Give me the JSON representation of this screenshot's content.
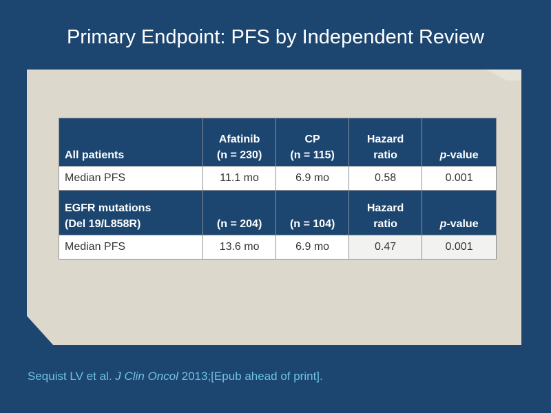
{
  "title": "Primary Endpoint: PFS by Independent Review",
  "table": {
    "section1": {
      "label": "All patients",
      "afatinib": [
        "Afatinib",
        "(n = 230)"
      ],
      "cp": [
        "CP",
        "(n = 115)"
      ],
      "hazard": [
        "Hazard",
        "ratio"
      ],
      "pvalue": {
        "italic": "p",
        "rest": "-value"
      }
    },
    "row1": {
      "label": "Median PFS",
      "afatinib": "11.1 mo",
      "cp": "6.9 mo",
      "hazard": "0.58",
      "pvalue": "0.001"
    },
    "section2": {
      "label": [
        "EGFR mutations",
        "(Del 19/L858R)"
      ],
      "afatinib": "(n = 204)",
      "cp": "(n = 104)",
      "hazard": [
        "Hazard",
        "ratio"
      ],
      "pvalue": {
        "italic": "p",
        "rest": "-value"
      }
    },
    "row2": {
      "label": "Median PFS",
      "afatinib": "13.6 mo",
      "cp": "6.9 mo",
      "hazard": "0.47",
      "pvalue": "0.001"
    }
  },
  "citation": {
    "authors": "Sequist LV et al. ",
    "journal": "J Clin Oncol",
    "rest": " 2013;[Epub ahead of print]."
  },
  "colors": {
    "background": "#1c4670",
    "panel": "#dcd8cc",
    "header_cell": "#1c4670",
    "citation_text": "#6fc3e6"
  }
}
